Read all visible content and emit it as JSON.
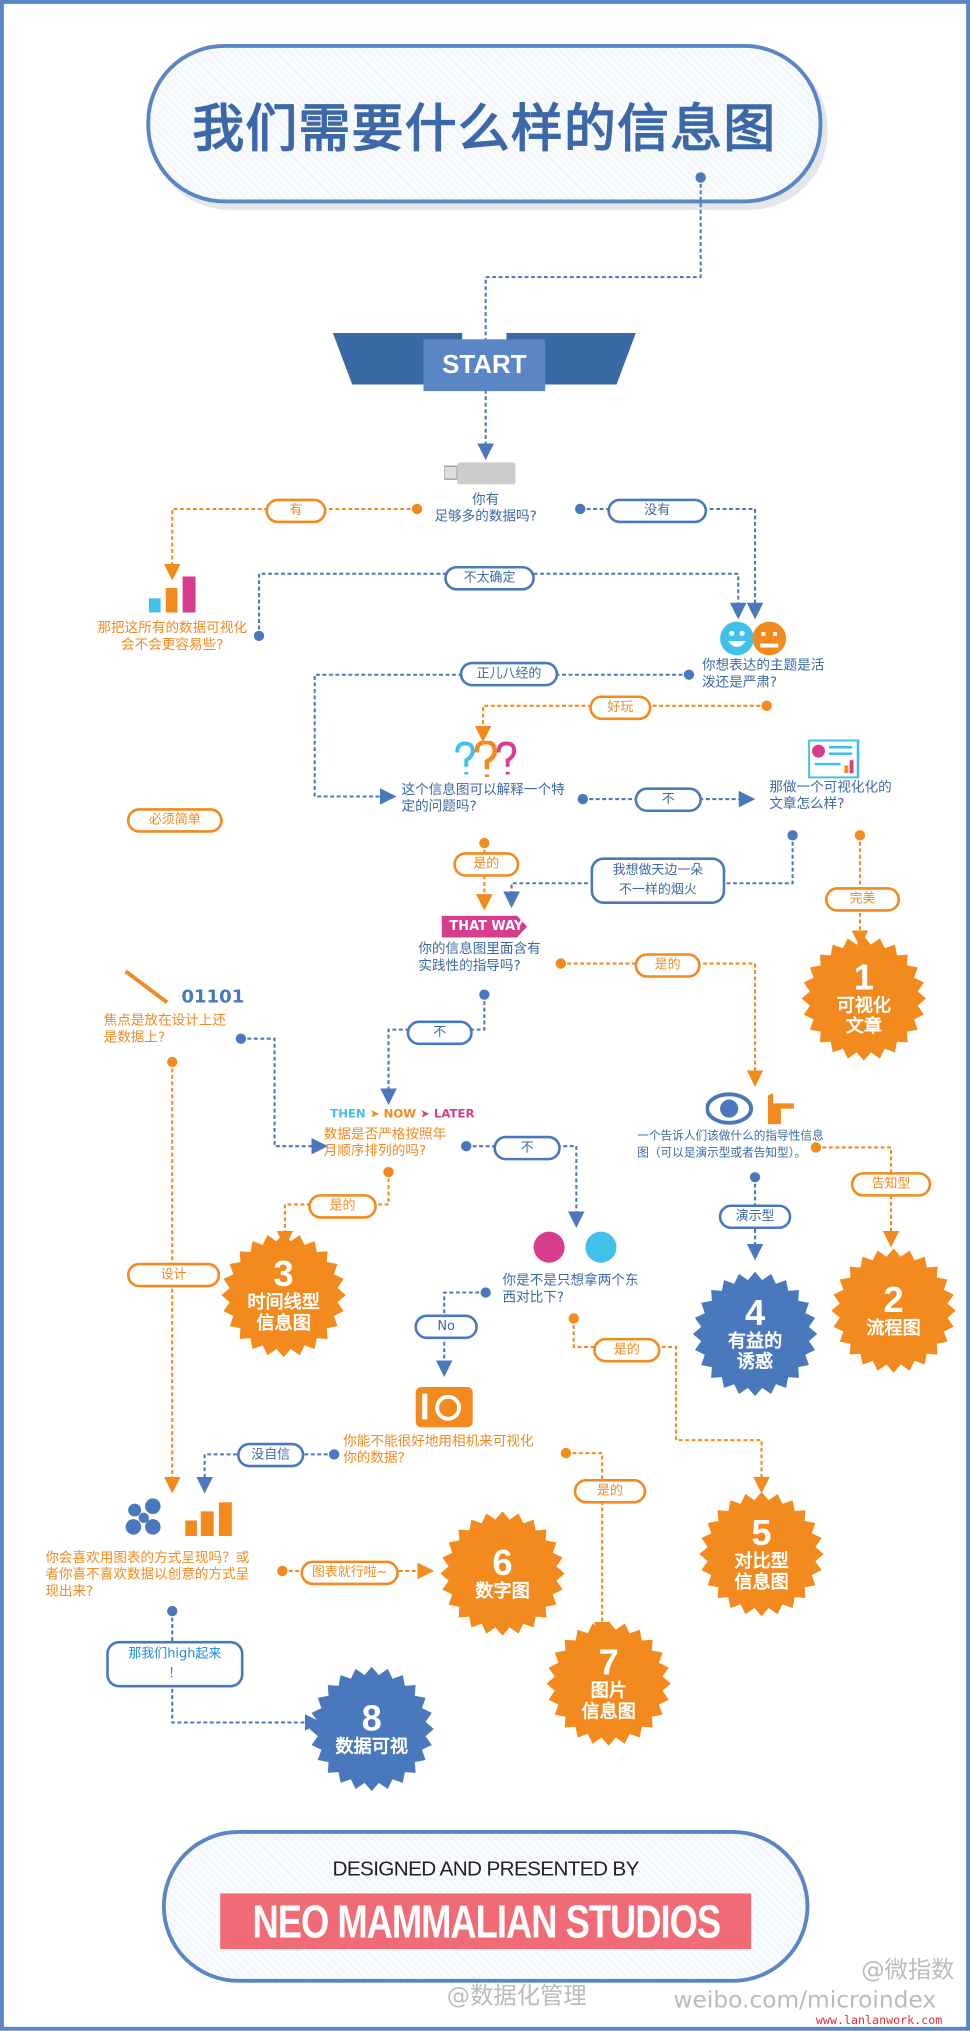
{
  "title": "我们需要什么样的信息图",
  "start_label": "START",
  "colors": {
    "blue": "#4a78bd",
    "orange": "#f28a1e",
    "magenta": "#d63d8c",
    "cyan": "#41c0ea",
    "frame": "#5b86c5",
    "footer_red": "#f06b75"
  },
  "questions": {
    "enough_data": "你有\n足够多的数据吗?",
    "visualize_all": "那把这所有的数据可视化\n会不会更容易些?",
    "topic_tone": "你想表达的主题是活\n泼还是严肃?",
    "explain_problem": "这个信息图可以解释一个特\n定的问题吗?",
    "visual_article": "那做一个可视化化的\n文章怎么样?",
    "practical_guide": "你的信息图里面含有\n实践性的指导吗?",
    "focus": "焦点是放在设计上还\n是数据上?",
    "chronological": "数据是否严格按照年\n月顺序排列的吗?",
    "guide_info": "一个告诉人们该做什么的指导性信息\n图（可以是演示型或者告知型）。",
    "compare_two": "你是不是只想拿两个东\n西对比下?",
    "camera": "你能不能很好地用相机来可视化\n你的数据?",
    "chart_or_creative": "你会喜欢用图表的方式呈现吗？或\n者你喜不喜欢数据以创意的方式呈\n现出来?"
  },
  "pills": {
    "yes": "有",
    "no": "没有",
    "unsure": "不太确定",
    "serious": "正儿八经的",
    "fun": "好玩",
    "not1": "不",
    "fireworks": "我想做天边一朵\n不一样的烟火",
    "perfect": "完美",
    "yes2": "是的",
    "yes3": "是的",
    "not2": "不",
    "simple": "必须简单",
    "not3": "不",
    "yes4": "是的",
    "inform": "告知型",
    "demo": "演示型",
    "no_en": "No",
    "yes5": "是的",
    "design": "设计",
    "no_confidence": "没自信",
    "yes6": "是的",
    "chart_ok": "图表就行啦~",
    "go_high": "那我们high起来\n！"
  },
  "badges": [
    {
      "num": "1",
      "label": "可视化\n文章",
      "color": "#f28a1e"
    },
    {
      "num": "2",
      "label": "流程图",
      "color": "#f28a1e"
    },
    {
      "num": "3",
      "label": "时间线型\n信息图",
      "color": "#f28a1e"
    },
    {
      "num": "4",
      "label": "有益的\n诱惑",
      "color": "#4a78bd"
    },
    {
      "num": "5",
      "label": "对比型\n信息图",
      "color": "#f28a1e"
    },
    {
      "num": "6",
      "label": "数字图",
      "color": "#f28a1e"
    },
    {
      "num": "7",
      "label": "图片\n信息图",
      "color": "#f28a1e"
    },
    {
      "num": "8",
      "label": "数据可视",
      "color": "#4a78bd"
    }
  ],
  "labels": {
    "that_way": "THAT WAY",
    "then": "THEN",
    "now": "NOW",
    "later": "LATER",
    "binary": "01101"
  },
  "footer": {
    "designed_by": "DESIGNED AND PRESENTED BY",
    "studio": "NEO MAMMALIAN STUDIOS"
  },
  "watermarks": {
    "w1": "@数据化管理",
    "w2": "@微指数",
    "w3": "weibo.com/microindex",
    "w4": "www.lanlanwork.com"
  }
}
